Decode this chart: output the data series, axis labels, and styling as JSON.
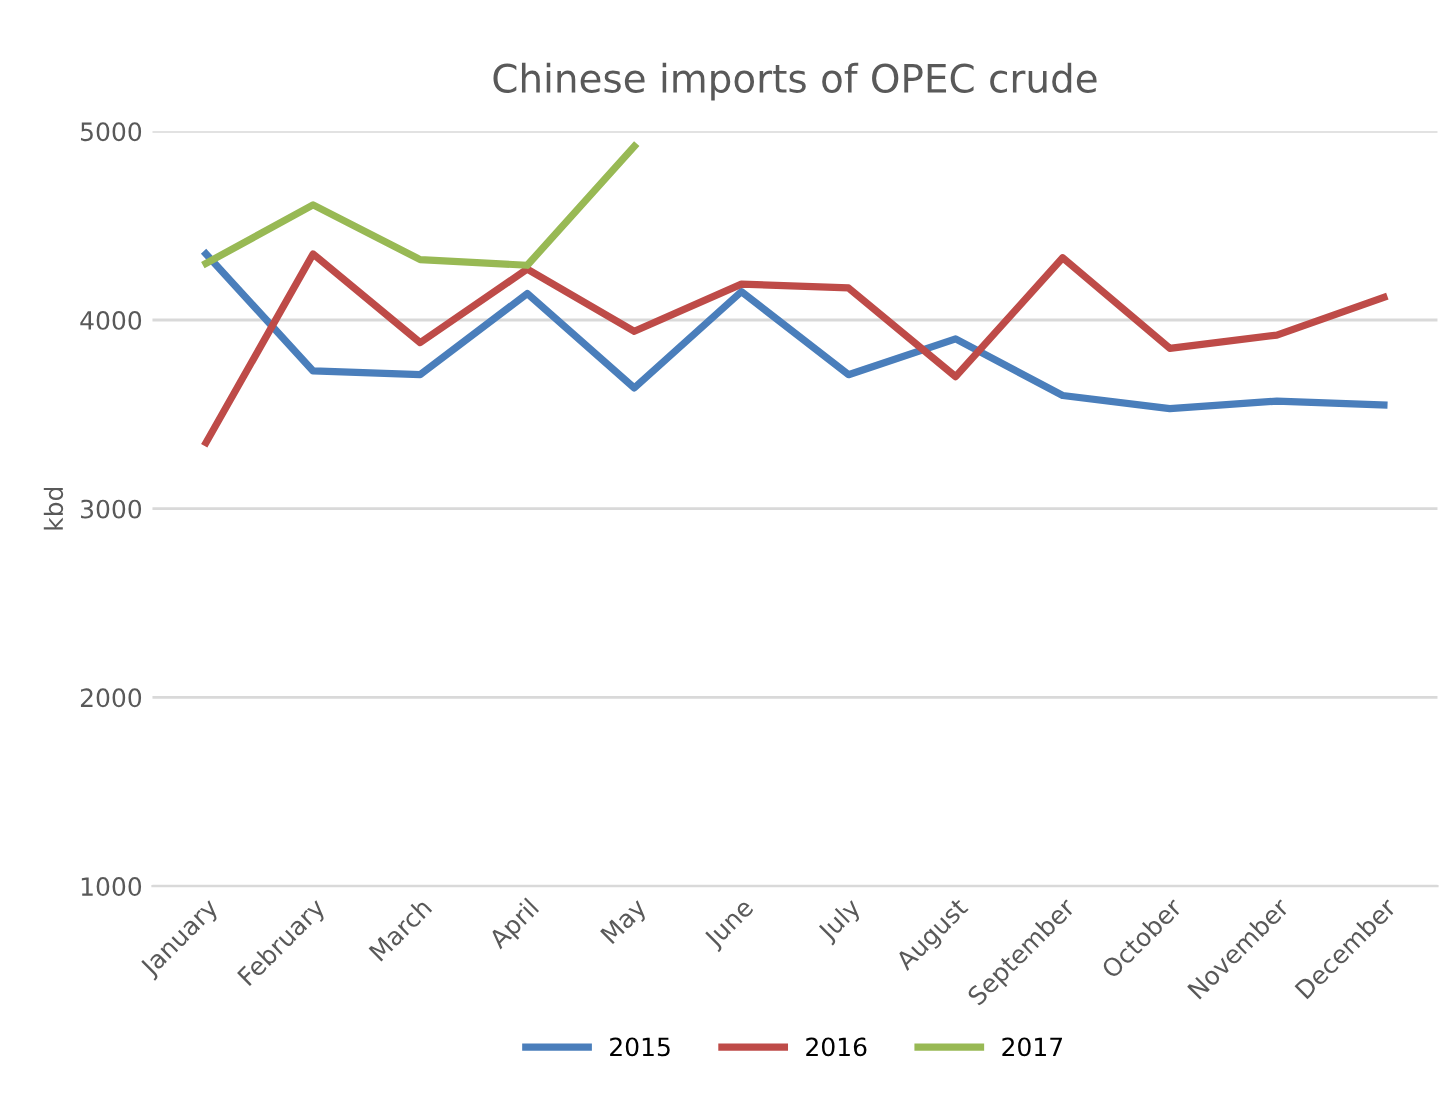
{
  "chart_data": {
    "type": "line",
    "title": "Chinese imports of OPEC crude",
    "ylabel": "kbd",
    "categories": [
      "January",
      "February",
      "March",
      "April",
      "May",
      "June",
      "July",
      "August",
      "September",
      "October",
      "November",
      "December"
    ],
    "series": [
      {
        "name": "2015",
        "color": "#4a7ebb",
        "values": [
          4350,
          3730,
          3710,
          4140,
          3640,
          4150,
          3710,
          3900,
          3600,
          3530,
          3570,
          3550
        ]
      },
      {
        "name": "2016",
        "color": "#be4b48",
        "values": [
          3350,
          4350,
          3880,
          4270,
          3940,
          4190,
          4170,
          3700,
          4330,
          3850,
          3920,
          4120
        ]
      },
      {
        "name": "2017",
        "color": "#98b954",
        "values": [
          4300,
          4610,
          4320,
          4290,
          4920,
          null,
          null,
          null,
          null,
          null,
          null,
          null
        ]
      }
    ],
    "ylim": [
      1000,
      5000
    ],
    "yticks": [
      1000,
      2000,
      3000,
      4000,
      5000
    ],
    "grid": "y",
    "legend": "bottom",
    "marker": "none",
    "line_style": "solid"
  }
}
